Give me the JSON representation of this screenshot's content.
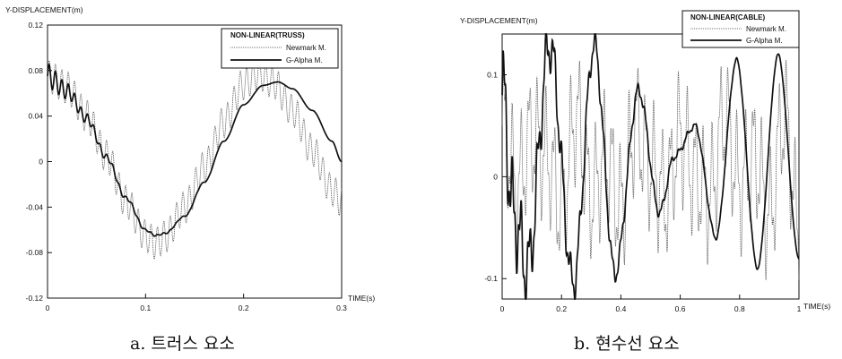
{
  "chart_data": [
    {
      "type": "line",
      "ylabel": "Y-DISPLACEMENT(m)",
      "xlabel": "TIME(s)",
      "xlim": [
        0,
        0.3
      ],
      "ylim": [
        -0.12,
        0.12
      ],
      "x_ticks": [
        0,
        0.1,
        0.2,
        0.3
      ],
      "x_tick_labels": [
        "0",
        "0.1",
        "0.2",
        "0.3"
      ],
      "y_ticks": [
        0.12,
        0.08,
        0.04,
        0,
        -0.04,
        -0.08,
        -0.12
      ],
      "y_tick_labels": [
        "0.12",
        "0.08",
        "0.04",
        "0",
        "-0.04",
        "-0.08",
        "-0.12"
      ],
      "legend_title": "NON-LINEAR(TRUSS)",
      "legend_position": "top-right",
      "caption": "a. 트러스 요소",
      "series": [
        {
          "name": "Newmark M.",
          "style": "thin-dotted",
          "x": [
            0,
            0.02,
            0.04,
            0.06,
            0.08,
            0.1,
            0.11,
            0.12,
            0.14,
            0.16,
            0.18,
            0.2,
            0.215,
            0.23,
            0.25,
            0.27,
            0.29,
            0.3
          ],
          "y": [
            0.075,
            0.065,
            0.04,
            0.005,
            -0.035,
            -0.065,
            -0.072,
            -0.066,
            -0.04,
            -0.005,
            0.035,
            0.068,
            0.077,
            0.07,
            0.045,
            0.01,
            -0.025,
            -0.035
          ],
          "oscillation_amplitude": 0.014,
          "oscillation_period": 0.0065
        },
        {
          "name": "G-Alpha M.",
          "style": "solid",
          "x": [
            0,
            0.02,
            0.04,
            0.06,
            0.08,
            0.1,
            0.11,
            0.12,
            0.14,
            0.16,
            0.18,
            0.2,
            0.22,
            0.235,
            0.25,
            0.27,
            0.29,
            0.3
          ],
          "y": [
            0.075,
            0.062,
            0.038,
            0.004,
            -0.032,
            -0.06,
            -0.065,
            -0.063,
            -0.048,
            -0.018,
            0.018,
            0.05,
            0.067,
            0.07,
            0.064,
            0.045,
            0.018,
            0.0
          ],
          "oscillation_amplitude": 0.011,
          "oscillation_damping": 0.04,
          "oscillation_period": 0.0065
        }
      ]
    },
    {
      "type": "line",
      "ylabel": "Y-DISPLACEMENT(m)",
      "xlabel": "TIME(s)",
      "xlim": [
        0,
        1
      ],
      "ylim": [
        -0.12,
        0.14
      ],
      "x_ticks": [
        0,
        0.2,
        0.4,
        0.6,
        0.8,
        1
      ],
      "x_tick_labels": [
        "0",
        "0.2",
        "0.4",
        "0.6",
        "0.8",
        "1"
      ],
      "y_ticks": [
        0.1,
        0,
        -0.1
      ],
      "y_tick_labels": [
        "0.1",
        "0",
        "-0.1"
      ],
      "legend_title": "NON-LINEAR(CABLE)",
      "legend_position": "top-right",
      "caption": "b. 현수선 요소",
      "series": [
        {
          "name": "Newmark M.",
          "style": "thin-dotted",
          "x": [
            0,
            0.05,
            0.1,
            0.15,
            0.2,
            0.25,
            0.3,
            0.35,
            0.4,
            0.45,
            0.5,
            0.55,
            0.6,
            0.65,
            0.7,
            0.75,
            0.8,
            0.85,
            0.9,
            0.95,
            1
          ],
          "y": [
            0.05,
            -0.01,
            0.04,
            0.02,
            -0.03,
            0.06,
            -0.02,
            0.02,
            -0.03,
            0.05,
            0.01,
            -0.02,
            0.04,
            0.0,
            -0.02,
            0.06,
            -0.01,
            0.02,
            -0.04,
            0.06,
            -0.05
          ],
          "oscillation_amplitude": 0.05,
          "oscillation_period": 0.028
        },
        {
          "name": "G-Alpha M.",
          "style": "solid",
          "x": [
            0,
            0.04,
            0.085,
            0.16,
            0.24,
            0.31,
            0.38,
            0.46,
            0.53,
            0.58,
            0.65,
            0.72,
            0.79,
            0.86,
            0.93,
            1
          ],
          "y": [
            0.08,
            -0.04,
            -0.09,
            0.13,
            -0.105,
            0.13,
            -0.095,
            0.085,
            -0.035,
            0.02,
            0.05,
            -0.06,
            0.115,
            -0.09,
            0.12,
            -0.08
          ],
          "oscillation_amplitude": 0.045,
          "oscillation_damping": 0.22,
          "oscillation_period": 0.028
        }
      ]
    }
  ]
}
